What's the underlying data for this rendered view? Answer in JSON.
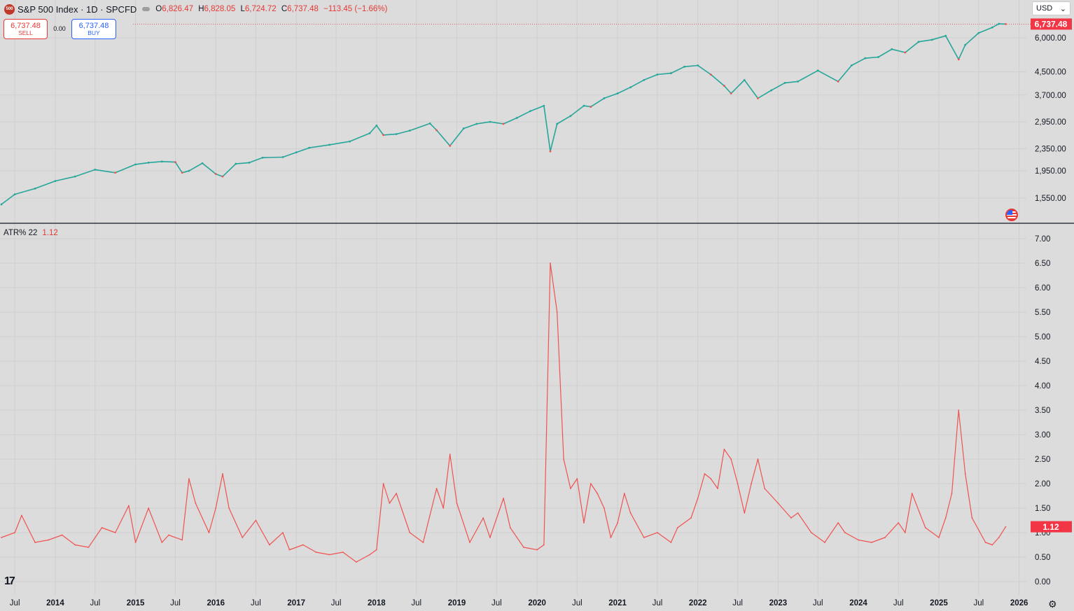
{
  "header": {
    "logo_text": "500",
    "symbol_title": "S&P 500 Index · 1D · SPCFD",
    "ohlc": {
      "o_label": "O",
      "o_value": "6,826.47",
      "h_label": "H",
      "h_value": "6,828.05",
      "l_label": "L",
      "l_value": "6,724.72",
      "c_label": "C",
      "c_value": "6,737.48",
      "change": "−113.45 (−1.66%)"
    }
  },
  "trade": {
    "sell_price": "6,737.48",
    "sell_label": "SELL",
    "spread": "0.00",
    "buy_price": "6,737.48",
    "buy_label": "BUY"
  },
  "currency_select": {
    "value": "USD",
    "icon": "chevron-down-icon"
  },
  "indicator": {
    "name": "ATR% 22",
    "value": "1.12"
  },
  "colors": {
    "background": "#dcdcdc",
    "grid": "#cfcfcf",
    "up_candle": "#26a69a",
    "down_candle": "#ef5350",
    "atr_line": "#ef5350",
    "last_price_label": "#f23645",
    "pane_divider": "#131722",
    "text": "#131722"
  },
  "icons": {
    "brand": "tradingview-logo-icon",
    "settings": "gear-icon",
    "flag": "us-flag-icon"
  },
  "chart_data": [
    {
      "type": "line",
      "pane": "price",
      "scale": "log",
      "series": [
        {
          "name": "S&P 500 Index",
          "x": [
            "2013-05",
            "2013-07",
            "2013-10",
            "2014-01",
            "2014-04",
            "2014-07",
            "2014-10",
            "2015-01",
            "2015-03",
            "2015-05",
            "2015-07",
            "2015-08",
            "2015-09",
            "2015-11",
            "2016-01",
            "2016-02",
            "2016-04",
            "2016-06",
            "2016-08",
            "2016-11",
            "2017-01",
            "2017-03",
            "2017-06",
            "2017-09",
            "2017-12",
            "2018-01",
            "2018-02",
            "2018-04",
            "2018-06",
            "2018-09",
            "2018-10",
            "2018-12",
            "2019-02",
            "2019-04",
            "2019-06",
            "2019-08",
            "2019-10",
            "2019-12",
            "2020-02",
            "2020-03",
            "2020-04",
            "2020-06",
            "2020-08",
            "2020-09",
            "2020-11",
            "2021-01",
            "2021-03",
            "2021-05",
            "2021-07",
            "2021-09",
            "2021-11",
            "2022-01",
            "2022-03",
            "2022-05",
            "2022-06",
            "2022-08",
            "2022-10",
            "2022-12",
            "2023-02",
            "2023-04",
            "2023-07",
            "2023-10",
            "2023-12",
            "2024-02",
            "2024-04",
            "2024-06",
            "2024-08",
            "2024-10",
            "2024-12",
            "2025-02",
            "2025-04",
            "2025-05",
            "2025-07",
            "2025-09",
            "2025-10",
            "2025-11"
          ],
          "values": [
            1470,
            1600,
            1680,
            1790,
            1860,
            1970,
            1920,
            2060,
            2090,
            2110,
            2100,
            1920,
            1950,
            2080,
            1900,
            1860,
            2070,
            2090,
            2180,
            2190,
            2280,
            2370,
            2430,
            2500,
            2680,
            2860,
            2640,
            2660,
            2740,
            2910,
            2750,
            2410,
            2790,
            2900,
            2950,
            2900,
            3050,
            3230,
            3380,
            2300,
            2900,
            3100,
            3380,
            3350,
            3600,
            3750,
            3950,
            4200,
            4400,
            4450,
            4700,
            4750,
            4400,
            4000,
            3750,
            4200,
            3600,
            3850,
            4100,
            4150,
            4550,
            4150,
            4750,
            5050,
            5100,
            5450,
            5300,
            5800,
            5900,
            6100,
            5000,
            5650,
            6250,
            6550,
            6750,
            6737.48
          ]
        }
      ],
      "y_ticks": [
        1550,
        1950,
        2350,
        2950,
        3700,
        4500,
        6000
      ],
      "y_tick_labels": [
        "1,550.00",
        "1,950.00",
        "2,350.00",
        "2,950.00",
        "3,700.00",
        "4,500.00",
        "6,000.00"
      ],
      "last_value_label": "6,737.48"
    },
    {
      "type": "line",
      "pane": "indicator",
      "series": [
        {
          "name": "ATR% 22",
          "x": [
            "2013-05",
            "2013-07",
            "2013-08",
            "2013-10",
            "2013-12",
            "2014-02",
            "2014-04",
            "2014-06",
            "2014-08",
            "2014-10",
            "2014-12",
            "2015-01",
            "2015-03",
            "2015-05",
            "2015-06",
            "2015-08",
            "2015-09",
            "2015-10",
            "2015-12",
            "2016-01",
            "2016-02",
            "2016-03",
            "2016-05",
            "2016-07",
            "2016-09",
            "2016-11",
            "2016-12",
            "2017-02",
            "2017-04",
            "2017-06",
            "2017-08",
            "2017-10",
            "2017-12",
            "2018-01",
            "2018-02",
            "2018-03",
            "2018-04",
            "2018-06",
            "2018-08",
            "2018-10",
            "2018-11",
            "2018-12",
            "2019-01",
            "2019-03",
            "2019-05",
            "2019-06",
            "2019-08",
            "2019-09",
            "2019-11",
            "2020-01",
            "2020-02",
            "2020-03",
            "2020-04",
            "2020-05",
            "2020-06",
            "2020-07",
            "2020-08",
            "2020-09",
            "2020-10",
            "2020-11",
            "2020-12",
            "2021-01",
            "2021-02",
            "2021-03",
            "2021-05",
            "2021-07",
            "2021-09",
            "2021-10",
            "2021-12",
            "2022-01",
            "2022-02",
            "2022-03",
            "2022-04",
            "2022-05",
            "2022-06",
            "2022-07",
            "2022-08",
            "2022-09",
            "2022-10",
            "2022-11",
            "2023-01",
            "2023-03",
            "2023-04",
            "2023-06",
            "2023-08",
            "2023-10",
            "2023-11",
            "2024-01",
            "2024-03",
            "2024-05",
            "2024-07",
            "2024-08",
            "2024-09",
            "2024-11",
            "2025-01",
            "2025-02",
            "2025-03",
            "2025-04",
            "2025-05",
            "2025-06",
            "2025-08",
            "2025-09",
            "2025-10",
            "2025-11"
          ],
          "values": [
            0.9,
            1.0,
            1.35,
            0.8,
            0.85,
            0.95,
            0.75,
            0.7,
            1.1,
            1.0,
            1.55,
            0.8,
            1.5,
            0.8,
            0.95,
            0.85,
            2.1,
            1.6,
            1.0,
            1.5,
            2.2,
            1.5,
            0.9,
            1.25,
            0.75,
            1.0,
            0.65,
            0.75,
            0.6,
            0.55,
            0.6,
            0.4,
            0.55,
            0.65,
            2.0,
            1.6,
            1.8,
            1.0,
            0.8,
            1.9,
            1.5,
            2.6,
            1.6,
            0.8,
            1.3,
            0.9,
            1.7,
            1.1,
            0.7,
            0.65,
            0.75,
            6.5,
            5.5,
            2.5,
            1.9,
            2.1,
            1.2,
            2.0,
            1.8,
            1.5,
            0.9,
            1.2,
            1.8,
            1.4,
            0.9,
            1.0,
            0.8,
            1.1,
            1.3,
            1.7,
            2.2,
            2.1,
            1.9,
            2.7,
            2.5,
            2.0,
            1.4,
            2.0,
            2.5,
            1.9,
            1.6,
            1.3,
            1.4,
            1.0,
            0.8,
            1.2,
            1.0,
            0.85,
            0.8,
            0.9,
            1.2,
            1.0,
            1.8,
            1.1,
            0.9,
            1.3,
            1.8,
            3.5,
            2.2,
            1.3,
            0.8,
            0.75,
            0.9,
            1.12
          ]
        }
      ],
      "y_ticks": [
        0.0,
        0.5,
        1.0,
        1.5,
        2.0,
        2.5,
        3.0,
        3.5,
        4.0,
        4.5,
        5.0,
        5.5,
        6.0,
        6.5,
        7.0
      ],
      "y_tick_labels": [
        "0.00",
        "0.50",
        "1.00",
        "1.50",
        "2.00",
        "2.50",
        "3.00",
        "3.50",
        "4.00",
        "4.50",
        "5.00",
        "5.50",
        "6.00",
        "6.50",
        "7.00"
      ],
      "last_value_label": "1.12"
    }
  ],
  "time_axis": {
    "labels": [
      "Jul",
      "2014",
      "Jul",
      "2015",
      "Jul",
      "2016",
      "Jul",
      "2017",
      "Jul",
      "2018",
      "Jul",
      "2019",
      "Jul",
      "2020",
      "Jul",
      "2021",
      "Jul",
      "2022",
      "Jul",
      "2023",
      "Jul",
      "2024",
      "Jul",
      "2025",
      "Jul",
      "2026"
    ],
    "dates": [
      "2013-07",
      "2014-01",
      "2014-07",
      "2015-01",
      "2015-07",
      "2016-01",
      "2016-07",
      "2017-01",
      "2017-07",
      "2018-01",
      "2018-07",
      "2019-01",
      "2019-07",
      "2020-01",
      "2020-07",
      "2021-01",
      "2021-07",
      "2022-01",
      "2022-07",
      "2023-01",
      "2023-07",
      "2024-01",
      "2024-07",
      "2025-01",
      "2025-07",
      "2026-01"
    ]
  }
}
